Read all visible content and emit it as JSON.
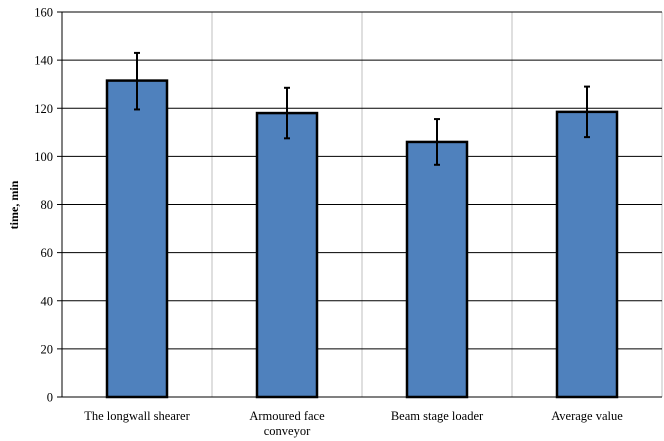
{
  "chart_data": {
    "type": "bar",
    "title": "",
    "xlabel": "",
    "ylabel": "time, min",
    "categories": [
      [
        "The longwall shearer"
      ],
      [
        "Armoured face",
        "conveyor"
      ],
      [
        "Beam stage loader"
      ],
      [
        "Average value"
      ]
    ],
    "values": [
      131.5,
      118,
      106,
      118.5
    ],
    "error_low": [
      119.5,
      107.5,
      96.5,
      108
    ],
    "error_high": [
      143,
      128.5,
      115.5,
      129
    ],
    "ylim": [
      0,
      160
    ],
    "yticks": [
      0,
      20,
      40,
      60,
      80,
      100,
      120,
      140,
      160
    ],
    "grid": {
      "horizontal": true,
      "vertical": true
    },
    "legend": "none",
    "colors": {
      "bar_fill": "#4f81bd",
      "bar_stroke": "#000000",
      "gridline": "#000000",
      "vertical_gridline": "#bfbfbf",
      "error_bar": "#000000"
    }
  }
}
